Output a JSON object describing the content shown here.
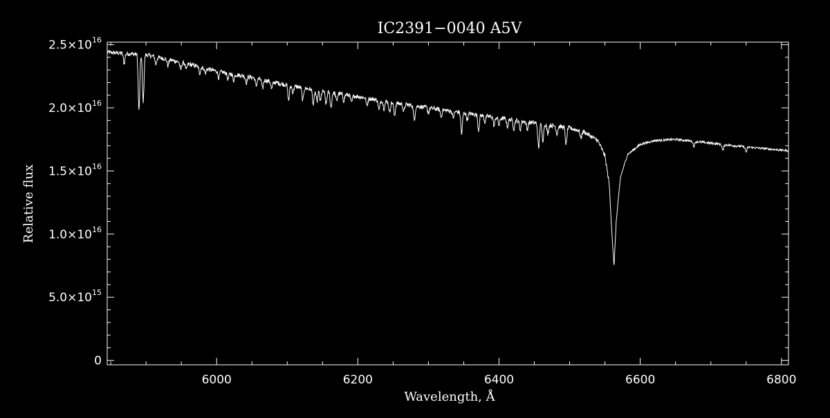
{
  "chart_data": {
    "type": "line",
    "title": "IC2391−0040   A5V",
    "xlabel": "Wavelength, Å",
    "ylabel": "Relative flux",
    "xlim": [
      5845,
      6810
    ],
    "ylim": [
      -350000000000000.0,
      2.52e+16
    ],
    "x_ticks": [
      6000,
      6200,
      6400,
      6600,
      6800
    ],
    "y_ticks": [
      {
        "value": 0,
        "mantissa": "0",
        "exponent": ""
      },
      {
        "value": 5000000000000000.0,
        "mantissa": "5.0×10",
        "exponent": "15"
      },
      {
        "value": 1e+16,
        "mantissa": "1.0×10",
        "exponent": "16"
      },
      {
        "value": 1.5e+16,
        "mantissa": "1.5×10",
        "exponent": "16"
      },
      {
        "value": 2e+16,
        "mantissa": "2.0×10",
        "exponent": "16"
      },
      {
        "value": 2.5e+16,
        "mantissa": "2.5×10",
        "exponent": "16"
      }
    ],
    "grid": false,
    "series": [
      {
        "color": "#ffffff",
        "continuum": [
          [
            5845,
            2.44e+16
          ],
          [
            5870,
            2.43e+16
          ],
          [
            5900,
            2.42e+16
          ],
          [
            5950,
            2.36e+16
          ],
          [
            6000,
            2.29e+16
          ],
          [
            6050,
            2.24e+16
          ],
          [
            6100,
            2.18e+16
          ],
          [
            6150,
            2.13e+16
          ],
          [
            6200,
            2.09e+16
          ],
          [
            6250,
            2.04e+16
          ],
          [
            6300,
            2e+16
          ],
          [
            6350,
            1.96e+16
          ],
          [
            6400,
            1.92e+16
          ],
          [
            6450,
            1.88e+16
          ],
          [
            6500,
            1.84e+16
          ],
          [
            6520,
            1.81e+16
          ],
          [
            6540,
            1.74e+16
          ],
          [
            6550,
            1.62e+16
          ],
          [
            6556,
            1.4e+16
          ],
          [
            6560,
            1e+16
          ],
          [
            6562.8,
            7400000000000000.0
          ],
          [
            6566,
            1.1e+16
          ],
          [
            6572,
            1.45e+16
          ],
          [
            6582,
            1.63e+16
          ],
          [
            6600,
            1.71e+16
          ],
          [
            6620,
            1.74e+16
          ],
          [
            6650,
            1.75e+16
          ],
          [
            6700,
            1.72e+16
          ],
          [
            6750,
            1.69e+16
          ],
          [
            6810,
            1.66e+16
          ]
        ],
        "absorption_lines": [
          [
            5869,
            800000000000000.0
          ],
          [
            5890,
            4500000000000000.0
          ],
          [
            5896,
            3700000000000000.0
          ],
          [
            5914,
            600000000000000.0
          ],
          [
            5931,
            500000000000000.0
          ],
          [
            5949,
            600000000000000.0
          ],
          [
            5957,
            500000000000000.0
          ],
          [
            5976,
            500000000000000.0
          ],
          [
            5984,
            400000000000000.0
          ],
          [
            6003,
            500000000000000.0
          ],
          [
            6016,
            500000000000000.0
          ],
          [
            6024,
            500000000000000.0
          ],
          [
            6042,
            500000000000000.0
          ],
          [
            6056,
            600000000000000.0
          ],
          [
            6065,
            700000000000000.0
          ],
          [
            6078,
            600000000000000.0
          ],
          [
            6102,
            1200000000000000.0
          ],
          [
            6108,
            500000000000000.0
          ],
          [
            6122,
            1000000000000000.0
          ],
          [
            6137,
            1200000000000000.0
          ],
          [
            6142,
            900000000000000.0
          ],
          [
            6147,
            800000000000000.0
          ],
          [
            6155,
            1000000000000000.0
          ],
          [
            6162,
            1200000000000000.0
          ],
          [
            6170,
            600000000000000.0
          ],
          [
            6180,
            500000000000000.0
          ],
          [
            6191,
            600000000000000.0
          ],
          [
            6213,
            600000000000000.0
          ],
          [
            6230,
            800000000000000.0
          ],
          [
            6237,
            600000000000000.0
          ],
          [
            6245,
            800000000000000.0
          ],
          [
            6252,
            1000000000000000.0
          ],
          [
            6265,
            600000000000000.0
          ],
          [
            6280,
            1200000000000000.0
          ],
          [
            6300,
            400000000000000.0
          ],
          [
            6318,
            600000000000000.0
          ],
          [
            6335,
            500000000000000.0
          ],
          [
            6347,
            1700000000000000.0
          ],
          [
            6355,
            500000000000000.0
          ],
          [
            6371,
            1200000000000000.0
          ],
          [
            6380,
            500000000000000.0
          ],
          [
            6393,
            700000000000000.0
          ],
          [
            6400,
            600000000000000.0
          ],
          [
            6412,
            600000000000000.0
          ],
          [
            6421,
            700000000000000.0
          ],
          [
            6430,
            700000000000000.0
          ],
          [
            6440,
            600000000000000.0
          ],
          [
            6456,
            2000000000000000.0
          ],
          [
            6462,
            1300000000000000.0
          ],
          [
            6469,
            700000000000000.0
          ],
          [
            6482,
            600000000000000.0
          ],
          [
            6495,
            1400000000000000.0
          ],
          [
            6516,
            600000000000000.0
          ],
          [
            6676,
            400000000000000.0
          ],
          [
            6717,
            500000000000000.0
          ],
          [
            6750,
            400000000000000.0
          ]
        ]
      }
    ]
  }
}
